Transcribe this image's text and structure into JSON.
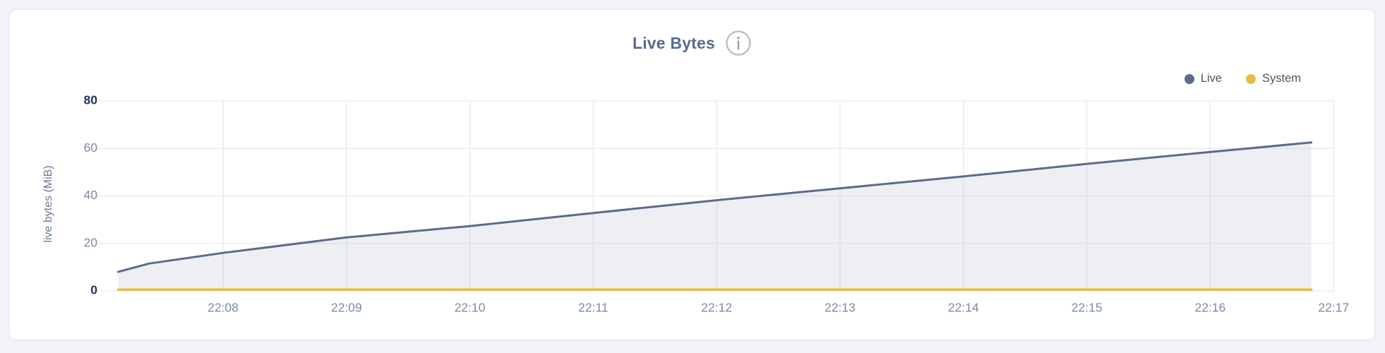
{
  "header": {
    "title": "Live Bytes",
    "info_icon": "info-circle"
  },
  "axes": {
    "y_title": "live bytes (MiB)"
  },
  "legend": {
    "items": [
      {
        "label": "Live",
        "color": "#5b6b8c"
      },
      {
        "label": "System",
        "color": "#e5bd49"
      }
    ]
  },
  "chart_data": {
    "type": "area",
    "title": "Live Bytes",
    "xlabel": "",
    "ylabel": "live bytes (MiB)",
    "ylim": [
      0,
      80
    ],
    "y_ticks": [
      0,
      20,
      40,
      60,
      80
    ],
    "x_ticks": [
      "22:08",
      "22:09",
      "22:10",
      "22:11",
      "22:12",
      "22:13",
      "22:14",
      "22:15",
      "22:16",
      "22:17"
    ],
    "grid": true,
    "legend_position": "top-right",
    "series": [
      {
        "name": "Live",
        "color": "#5b6b8c",
        "area_fill": true,
        "x_minutes_after_2200": [
          7.15,
          7.4,
          8,
          9,
          10,
          11,
          12,
          13,
          14,
          15,
          16,
          16.82
        ],
        "values_mib": [
          8,
          11.5,
          16,
          22.5,
          27.3,
          32.8,
          38.2,
          43.2,
          48.2,
          53.5,
          58.5,
          62.5
        ]
      },
      {
        "name": "System",
        "color": "#e5bd49",
        "area_fill": false,
        "x_minutes_after_2200": [
          7.15,
          16.82
        ],
        "values_mib": [
          0.5,
          0.5
        ]
      }
    ],
    "style": {
      "grid_color": "#e7e9ee",
      "area_fill_color": "#aeb6c9",
      "area_fill_opacity": 0.22,
      "tick_color": "#7d8ba3",
      "tick_strong_color": "#1c3a63"
    }
  }
}
